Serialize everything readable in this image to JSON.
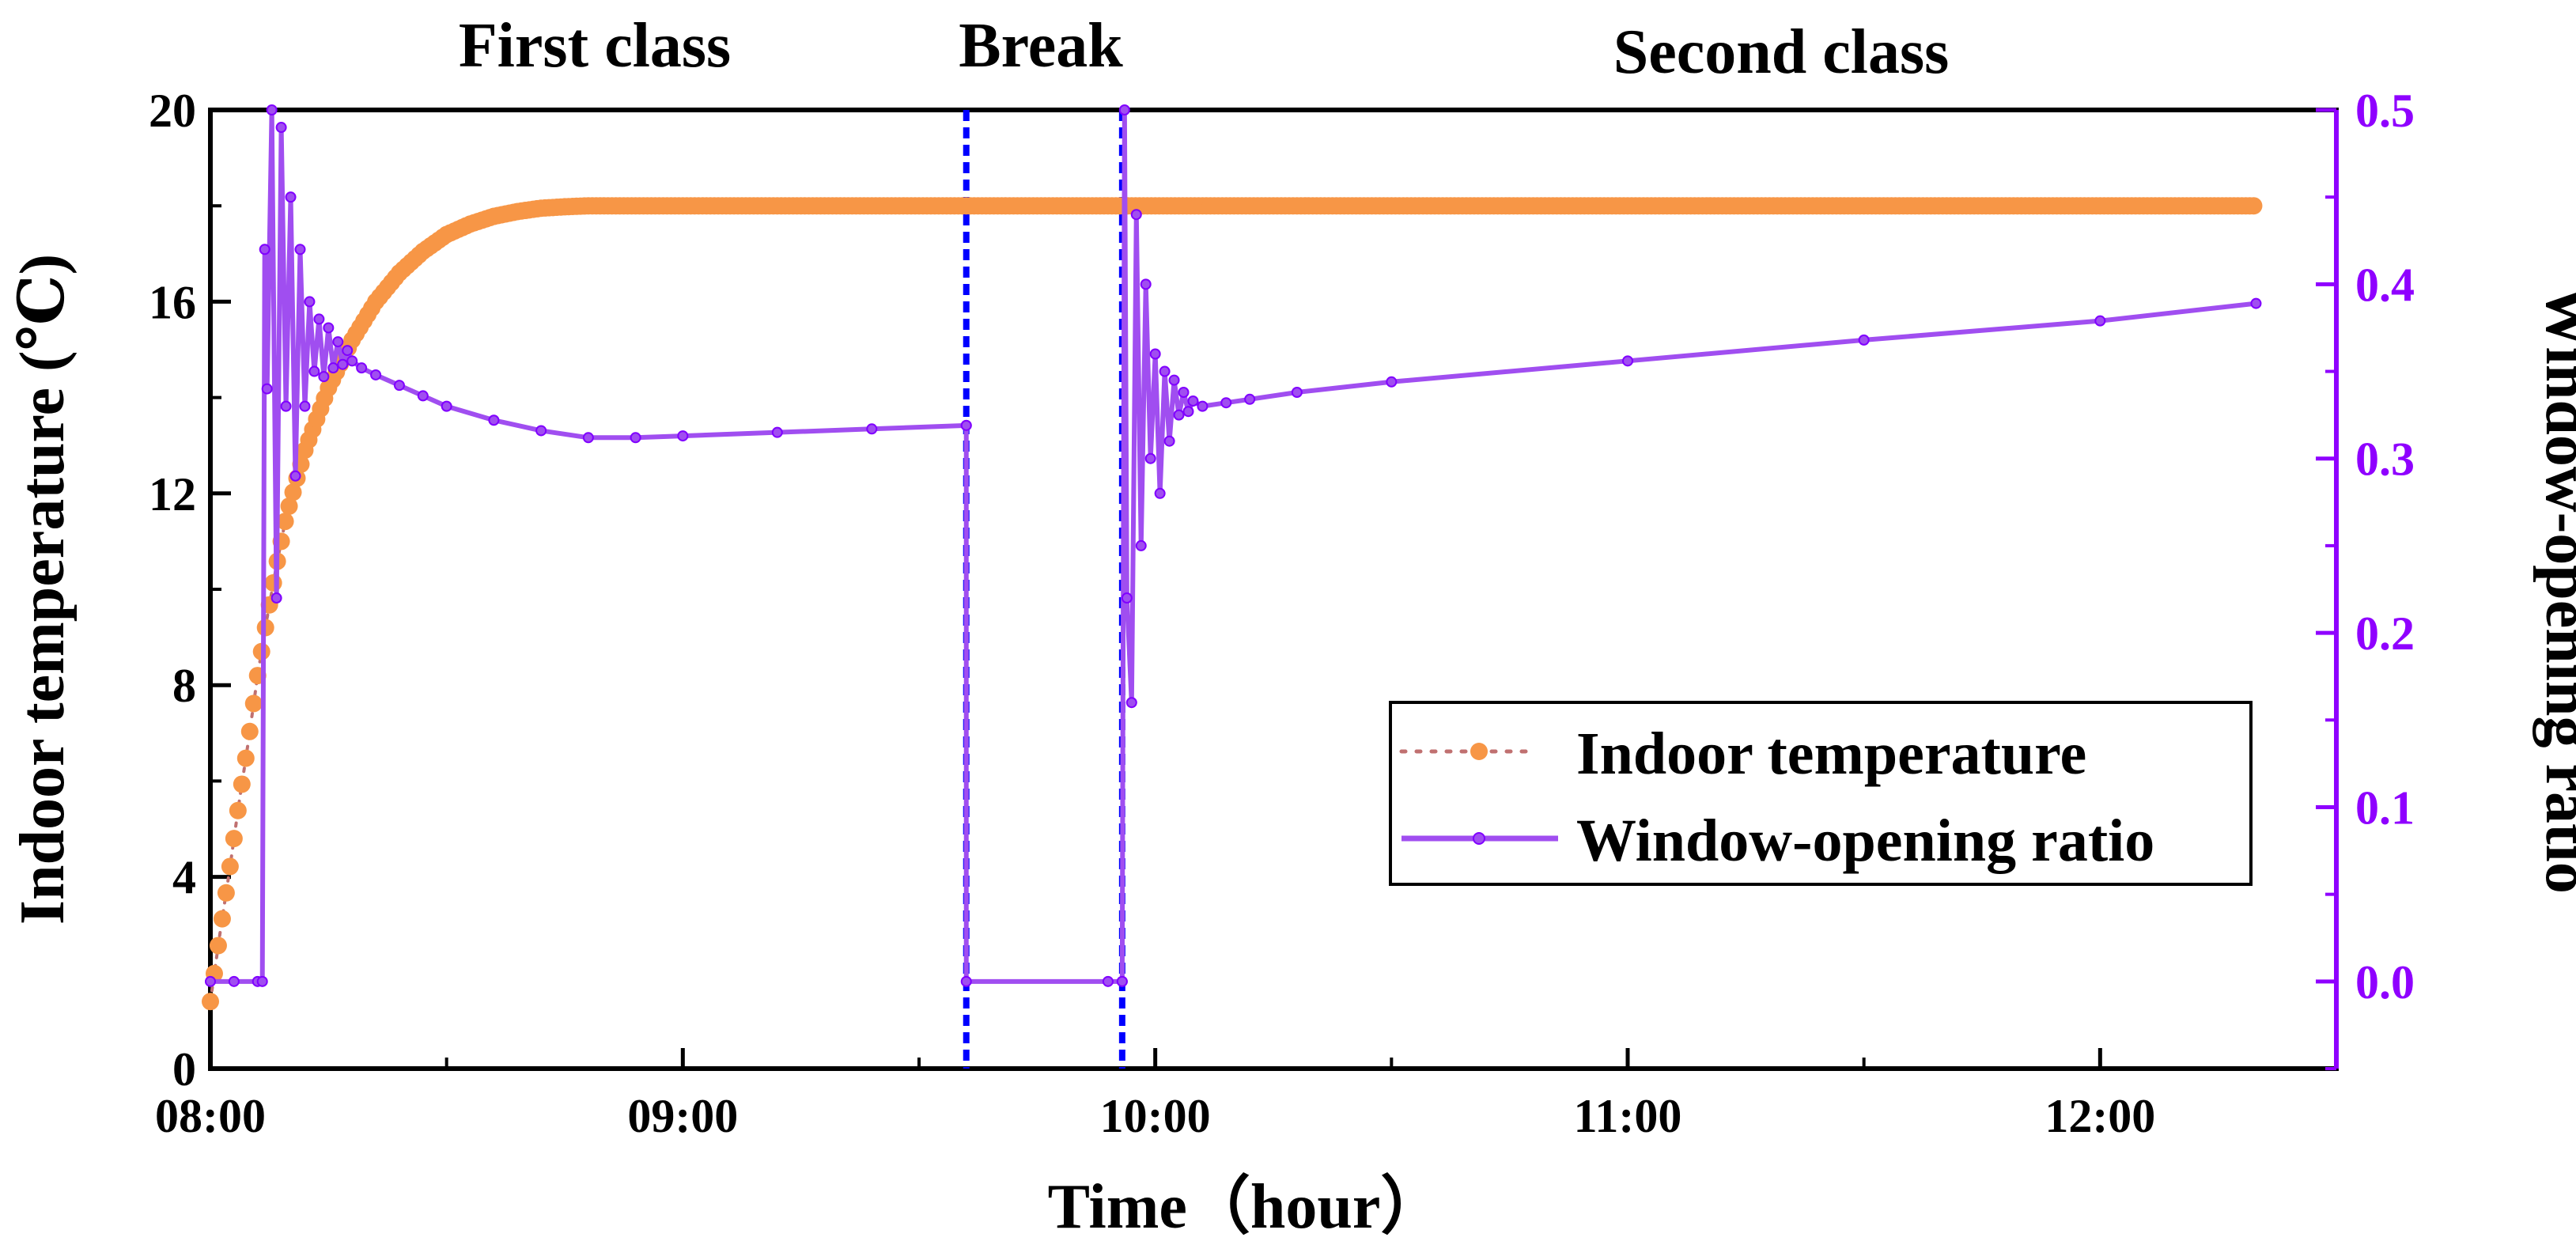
{
  "chart_data": {
    "type": "line",
    "section_labels": [
      "First class",
      "Break",
      "Second class"
    ],
    "xlabel": "Time（hour）",
    "ylabel_left": "Indoor temperature (℃)",
    "ylabel_right": "Window-opening ratio",
    "x_range_hours": [
      8.0,
      12.5
    ],
    "x_ticks": [
      8,
      9,
      10,
      11,
      12
    ],
    "x_tick_labels": [
      "08:00",
      "09:00",
      "10:00",
      "11:00",
      "12:00"
    ],
    "y_left_range": [
      0,
      20
    ],
    "y_left_ticks": [
      0,
      4,
      8,
      12,
      16,
      20
    ],
    "y_left_tick_labels": [
      "0",
      "4",
      "8",
      "12",
      "16",
      "20"
    ],
    "y_right_range": [
      -0.05,
      0.5
    ],
    "y_right_ticks": [
      0.0,
      0.1,
      0.2,
      0.3,
      0.4,
      0.5
    ],
    "y_right_tick_labels": [
      "0.0",
      "0.1",
      "0.2",
      "0.3",
      "0.4",
      "0.5"
    ],
    "break_markers_hours": [
      9.6,
      9.93
    ],
    "colors": {
      "temperature": "#f79646",
      "temperature_line": "#c07070",
      "ratio": "#a04ef0",
      "ratio_dark": "#8000ff",
      "right_axis": "#8f00ff",
      "break_line": "#0000ff"
    },
    "series": [
      {
        "name": "Indoor temperature",
        "axis": "left",
        "style": "dotted-line-with-markers",
        "x": [
          8.0,
          8.02,
          8.04,
          8.06,
          8.08,
          8.1,
          8.12,
          8.14,
          8.16,
          8.2,
          8.25,
          8.3,
          8.35,
          8.4,
          8.45,
          8.5,
          8.55,
          8.6,
          8.65,
          8.7,
          8.75,
          8.8,
          8.83,
          9.0,
          9.2,
          9.4,
          9.6,
          9.8,
          10.0,
          10.5,
          11.0,
          11.5,
          12.0,
          12.33
        ],
        "values": [
          1.4,
          2.8,
          4.1,
          5.5,
          6.8,
          8.2,
          9.4,
          10.5,
          11.5,
          12.9,
          14.2,
          15.2,
          16.0,
          16.6,
          17.05,
          17.4,
          17.62,
          17.78,
          17.88,
          17.95,
          17.98,
          18.0,
          18.0,
          18.0,
          18.0,
          18.0,
          18.0,
          18.0,
          18.0,
          18.0,
          18.0,
          18.0,
          18.0,
          18.0
        ]
      },
      {
        "name": "Window-opening ratio",
        "axis": "right",
        "style": "solid-line-with-markers",
        "segments": [
          {
            "x": [
              8.0,
              8.05,
              8.1,
              8.11,
              8.115,
              8.12,
              8.13,
              8.14,
              8.15,
              8.16,
              8.17,
              8.18,
              8.19,
              8.2,
              8.21,
              8.22,
              8.23,
              8.24,
              8.25,
              8.26,
              8.27,
              8.28,
              8.29,
              8.3,
              8.32,
              8.35,
              8.4,
              8.45,
              8.5,
              8.6,
              8.7,
              8.8,
              8.9,
              9.0,
              9.2,
              9.4,
              9.6
            ],
            "values": [
              0.0,
              0.0,
              0.0,
              0.0,
              0.42,
              0.34,
              0.5,
              0.22,
              0.49,
              0.33,
              0.45,
              0.29,
              0.42,
              0.33,
              0.39,
              0.35,
              0.38,
              0.347,
              0.375,
              0.352,
              0.367,
              0.354,
              0.362,
              0.356,
              0.352,
              0.348,
              0.342,
              0.336,
              0.33,
              0.322,
              0.316,
              0.312,
              0.312,
              0.313,
              0.315,
              0.317,
              0.319
            ]
          },
          {
            "x": [
              9.6,
              9.6,
              9.9,
              9.93
            ],
            "values": [
              0.319,
              0.0,
              0.0,
              0.0
            ]
          },
          {
            "x": [
              9.93,
              9.935,
              9.94,
              9.95,
              9.96,
              9.97,
              9.98,
              9.99,
              10.0,
              10.01,
              10.02,
              10.03,
              10.04,
              10.05,
              10.06,
              10.07,
              10.08,
              10.1,
              10.15,
              10.2,
              10.3,
              10.5,
              11.0,
              11.5,
              12.0,
              12.33
            ],
            "values": [
              0.0,
              0.5,
              0.22,
              0.16,
              0.44,
              0.25,
              0.4,
              0.3,
              0.36,
              0.28,
              0.35,
              0.31,
              0.345,
              0.325,
              0.338,
              0.327,
              0.333,
              0.33,
              0.332,
              0.334,
              0.338,
              0.344,
              0.356,
              0.368,
              0.379,
              0.389
            ]
          }
        ]
      }
    ],
    "legend": {
      "position": "lower-right",
      "entries": [
        "Indoor temperature",
        "Window-opening ratio"
      ]
    }
  }
}
